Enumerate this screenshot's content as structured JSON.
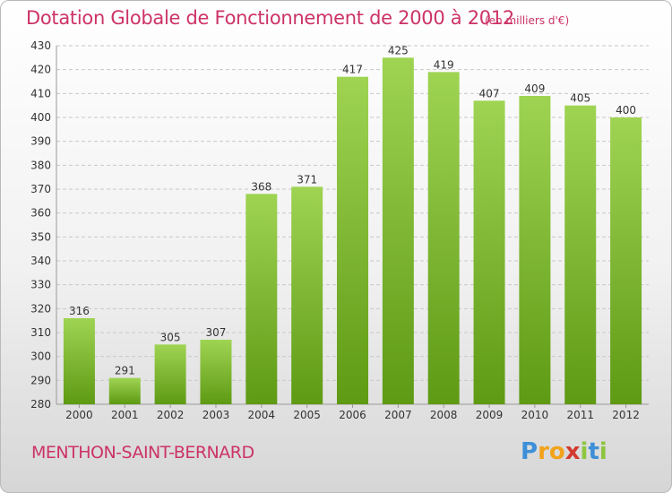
{
  "title": "Dotation Globale de Fonctionnement de 2000 à 2012",
  "unit_note": "(en milliers d'€)",
  "commune": "MENTHON-SAINT-BERNARD",
  "logo": {
    "letters": [
      "P",
      "r",
      "o",
      "x",
      "i",
      "t",
      "i"
    ],
    "colors": [
      "#3e8fd8",
      "#f2a31b",
      "#f2a31b",
      "#d23a2e",
      "#8cc63f",
      "#3e8fd8",
      "#8cc63f"
    ]
  },
  "colors": {
    "bar_top": "#9fd453",
    "bar_bottom": "#5e9a14",
    "grid": "#c8c8c8",
    "axis_text": "#333333"
  },
  "chart_data": {
    "type": "bar",
    "categories": [
      "2000",
      "2001",
      "2002",
      "2003",
      "2004",
      "2005",
      "2006",
      "2007",
      "2008",
      "2009",
      "2010",
      "2011",
      "2012"
    ],
    "values": [
      316,
      291,
      305,
      307,
      368,
      371,
      417,
      425,
      419,
      407,
      409,
      405,
      400
    ],
    "ylim": [
      280,
      430
    ],
    "yticks": [
      280,
      290,
      300,
      310,
      320,
      330,
      340,
      350,
      360,
      370,
      380,
      390,
      400,
      410,
      420,
      430
    ],
    "grid": true,
    "data_labels": true
  }
}
